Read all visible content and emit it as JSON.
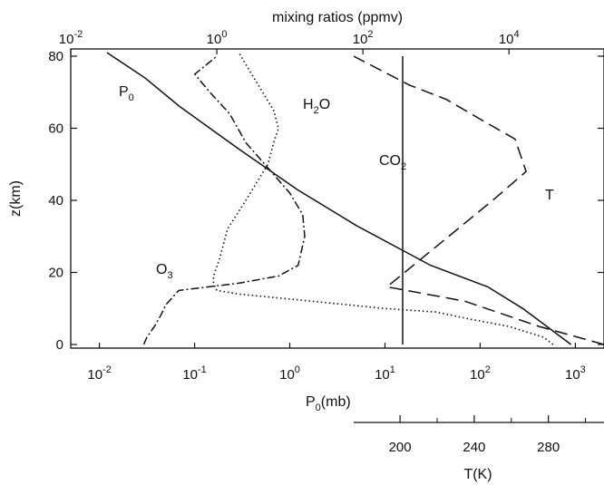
{
  "chart_data": {
    "type": "line",
    "title": "",
    "top_axis": {
      "label": "mixing ratios (ppmv)",
      "scale": "log",
      "range": [
        0.01,
        200000
      ],
      "ticks": [
        {
          "value": 0.01,
          "base": "10",
          "exp": "-2"
        },
        {
          "value": 1,
          "base": "10",
          "exp": "0"
        },
        {
          "value": 100,
          "base": "10",
          "exp": "2"
        },
        {
          "value": 10000,
          "base": "10",
          "exp": "4"
        }
      ]
    },
    "bottom_axis": {
      "label": "P",
      "label_sub": "0",
      "label_tail": "(mb)",
      "scale": "log",
      "range": [
        0.005,
        2000
      ],
      "ticks": [
        {
          "value": 0.01,
          "base": "10",
          "exp": "-2"
        },
        {
          "value": 0.1,
          "base": "10",
          "exp": "-1"
        },
        {
          "value": 1,
          "base": "10",
          "exp": "0"
        },
        {
          "value": 10,
          "base": "10",
          "exp": "1"
        },
        {
          "value": 100,
          "base": "10",
          "exp": "2"
        },
        {
          "value": 1000,
          "base": "10",
          "exp": "3"
        }
      ]
    },
    "y_axis": {
      "label": "z(km)",
      "range": [
        -1,
        82
      ],
      "ticks": [
        0,
        20,
        40,
        60,
        80
      ]
    },
    "temperature_axis": {
      "label": "T(K)",
      "range": [
        175,
        310
      ],
      "ticks": [
        200,
        240,
        280
      ],
      "minor_ticks": [
        220,
        260,
        300
      ]
    },
    "series": [
      {
        "name": "P",
        "name_sub": "0",
        "axis": "bottom",
        "style": "solid",
        "points": [
          [
            900,
            0
          ],
          [
            280,
            10
          ],
          [
            120,
            16
          ],
          [
            30,
            22
          ],
          [
            5,
            33
          ],
          [
            1.2,
            43
          ],
          [
            0.3,
            54
          ],
          [
            0.07,
            66
          ],
          [
            0.03,
            74
          ],
          [
            0.012,
            81
          ]
        ]
      },
      {
        "name": "H",
        "name_sub": "2",
        "name_tail": "O",
        "axis": "top",
        "style": "dotted",
        "points": [
          [
            40000,
            0
          ],
          [
            30000,
            2
          ],
          [
            10000,
            5
          ],
          [
            3000,
            7
          ],
          [
            1000,
            9
          ],
          [
            200,
            10
          ],
          [
            20,
            12
          ],
          [
            2,
            14
          ],
          [
            1,
            15
          ],
          [
            0.9,
            17
          ],
          [
            0.9,
            19
          ],
          [
            1.1,
            24
          ],
          [
            1.4,
            32
          ],
          [
            2.5,
            40
          ],
          [
            5,
            50
          ],
          [
            6,
            56
          ],
          [
            7,
            60
          ],
          [
            6,
            65
          ],
          [
            3,
            75
          ],
          [
            2,
            81
          ]
        ]
      },
      {
        "name": "O",
        "name_sub": "3",
        "axis": "top",
        "style": "dashdot",
        "points": [
          [
            0.1,
            0
          ],
          [
            0.11,
            2
          ],
          [
            0.14,
            5
          ],
          [
            0.17,
            8
          ],
          [
            0.2,
            11
          ],
          [
            0.3,
            15
          ],
          [
            2,
            17
          ],
          [
            7,
            19
          ],
          [
            13,
            22
          ],
          [
            16,
            30
          ],
          [
            15,
            36
          ],
          [
            10,
            42
          ],
          [
            5,
            49
          ],
          [
            2.5,
            56
          ],
          [
            1.5,
            64
          ],
          [
            0.8,
            70
          ],
          [
            0.5,
            75
          ],
          [
            1,
            80
          ]
        ]
      },
      {
        "name": "CO",
        "name_sub": "2",
        "axis": "top",
        "style": "solid",
        "points": [
          [
            350,
            0
          ],
          [
            350,
            80
          ]
        ]
      },
      {
        "name": "T",
        "axis": "temperature",
        "style": "dashed",
        "points": [
          [
            310,
            0
          ],
          [
            275,
            5
          ],
          [
            235,
            12
          ],
          [
            193,
            16
          ],
          [
            212,
            24
          ],
          [
            250,
            40
          ],
          [
            268,
            48
          ],
          [
            262,
            57
          ],
          [
            245,
            62
          ],
          [
            225,
            68
          ],
          [
            205,
            72
          ],
          [
            175,
            80
          ]
        ]
      }
    ],
    "annotations": [
      {
        "series": "P",
        "text": "P",
        "sub": "0"
      },
      {
        "series": "H2O",
        "text": "H",
        "sub": "2",
        "tail": "O"
      },
      {
        "series": "CO2",
        "text": "CO",
        "sub": "2"
      },
      {
        "series": "T",
        "text": "T"
      },
      {
        "series": "O3",
        "text": "O",
        "sub": "3"
      }
    ]
  }
}
